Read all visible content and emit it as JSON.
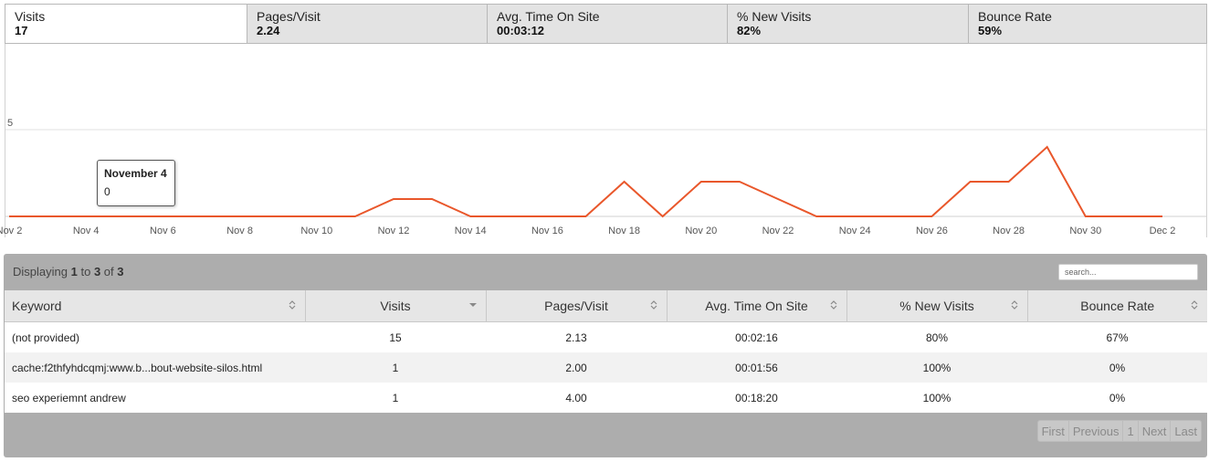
{
  "metric_tabs": [
    {
      "label": "Visits",
      "value": "17"
    },
    {
      "label": "Pages/Visit",
      "value": "2.24"
    },
    {
      "label": "Avg. Time On Site",
      "value": "00:03:12"
    },
    {
      "label": "% New Visits",
      "value": "82%"
    },
    {
      "label": "Bounce Rate",
      "value": "59%"
    }
  ],
  "active_tab": "Visits",
  "tooltip": {
    "title": "November 4",
    "value": "0"
  },
  "colors": {
    "series_line": "#e9572b",
    "gridline": "#e2e2e2",
    "panel_bg": "#adadad"
  },
  "chart_data": {
    "type": "line",
    "x": [
      "Nov 2",
      "Nov 3",
      "Nov 4",
      "Nov 5",
      "Nov 6",
      "Nov 7",
      "Nov 8",
      "Nov 9",
      "Nov 10",
      "Nov 11",
      "Nov 12",
      "Nov 13",
      "Nov 14",
      "Nov 15",
      "Nov 16",
      "Nov 17",
      "Nov 18",
      "Nov 19",
      "Nov 20",
      "Nov 21",
      "Nov 22",
      "Nov 23",
      "Nov 24",
      "Nov 25",
      "Nov 26",
      "Nov 27",
      "Nov 28",
      "Nov 29",
      "Nov 30",
      "Dec 1",
      "Dec 2"
    ],
    "series": [
      {
        "values": [
          0,
          0,
          0,
          0,
          0,
          0,
          0,
          0,
          0,
          0,
          1,
          1,
          0,
          0,
          0,
          0,
          2,
          0,
          2,
          2,
          1,
          0,
          0,
          0,
          0,
          2,
          2,
          4,
          0,
          0,
          0
        ]
      }
    ],
    "x_ticks": [
      "Nov 2",
      "Nov 4",
      "Nov 6",
      "Nov 8",
      "Nov 10",
      "Nov 12",
      "Nov 14",
      "Nov 16",
      "Nov 18",
      "Nov 20",
      "Nov 22",
      "Nov 24",
      "Nov 26",
      "Nov 28",
      "Nov 30",
      "Dec 2"
    ],
    "y_ticks": [
      {
        "value": 5,
        "label": "5"
      }
    ],
    "ylim": [
      0,
      10
    ],
    "grid": true,
    "legend": "none"
  },
  "table": {
    "displaying_prefix": "Displaying",
    "displaying_from": "1",
    "displaying_to_word": "to",
    "displaying_to": "3",
    "displaying_of_word": "of",
    "displaying_total": "3",
    "search_placeholder": "search...",
    "columns": [
      "Keyword",
      "Visits",
      "Pages/Visit",
      "Avg. Time On Site",
      "% New Visits",
      "Bounce Rate"
    ],
    "rows": [
      [
        "(not provided)",
        "15",
        "2.13",
        "00:02:16",
        "80%",
        "67%"
      ],
      [
        "cache:f2thfyhdcqmj:www.b...bout-website-silos.html",
        "1",
        "2.00",
        "00:01:56",
        "100%",
        "0%"
      ],
      [
        "seo experiemnt andrew",
        "1",
        "4.00",
        "00:18:20",
        "100%",
        "0%"
      ]
    ],
    "pager": [
      "First",
      "Previous",
      "1",
      "Next",
      "Last"
    ]
  }
}
